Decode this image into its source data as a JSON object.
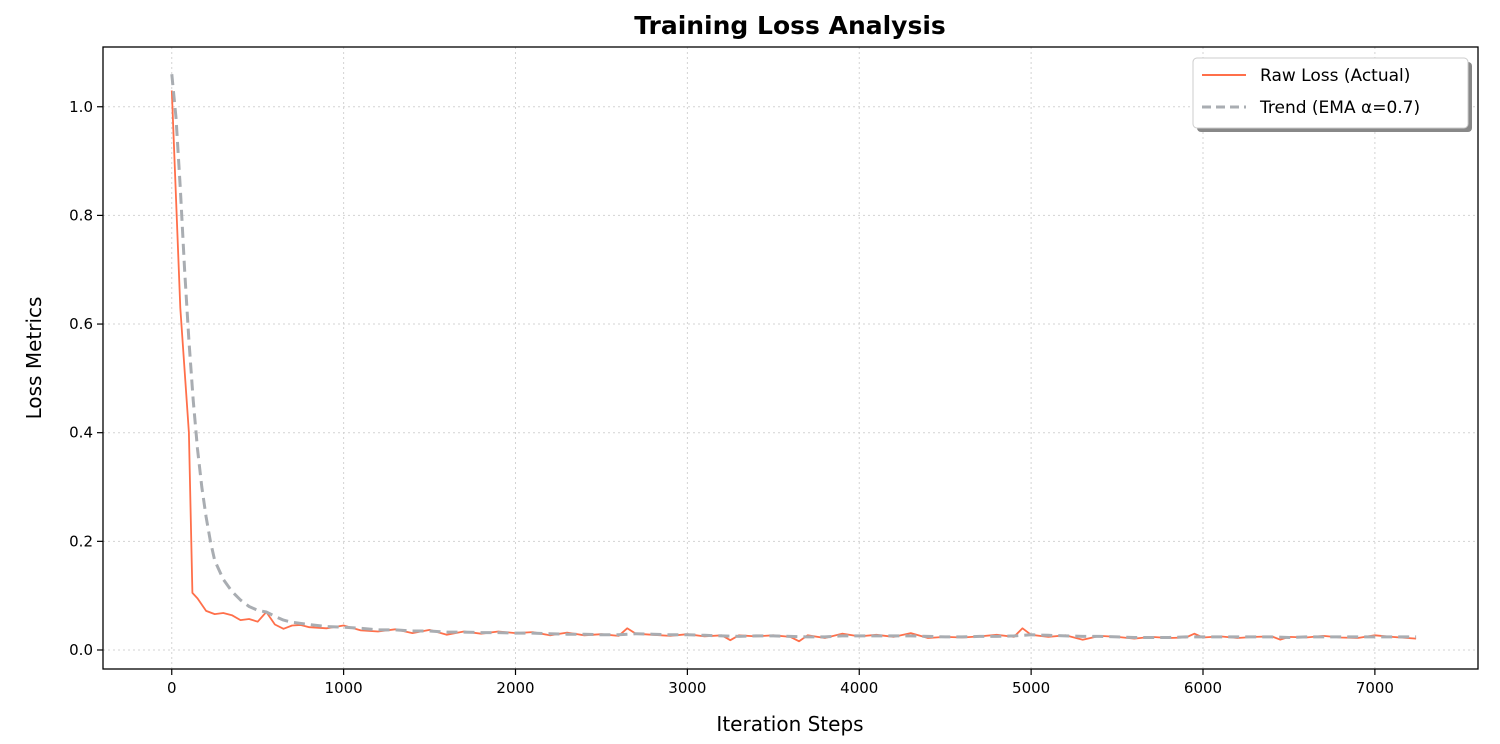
{
  "chart_data": {
    "type": "line",
    "title": "Training Loss Analysis",
    "xlabel": "Iteration Steps",
    "ylabel": "Loss Metrics",
    "xlim": [
      -400,
      7600
    ],
    "ylim": [
      -0.035,
      1.11
    ],
    "xticks": [
      0,
      1000,
      2000,
      3000,
      4000,
      5000,
      6000,
      7000
    ],
    "yticks": [
      0.0,
      0.2,
      0.4,
      0.6,
      0.8,
      1.0
    ],
    "xtick_labels": [
      "0",
      "1000",
      "2000",
      "3000",
      "4000",
      "5000",
      "6000",
      "7000"
    ],
    "ytick_labels": [
      "0.0",
      "0.2",
      "0.4",
      "0.6",
      "0.8",
      "1.0"
    ],
    "grid": true,
    "legend_position": "top-right",
    "series": [
      {
        "name": "Raw Loss (Actual)",
        "color": "#ff6f4a",
        "style": "solid",
        "x": [
          0,
          50,
          100,
          120,
          150,
          200,
          250,
          300,
          350,
          400,
          450,
          500,
          550,
          600,
          650,
          700,
          750,
          800,
          900,
          1000,
          1100,
          1200,
          1300,
          1400,
          1500,
          1600,
          1700,
          1800,
          1900,
          2000,
          2100,
          2200,
          2300,
          2400,
          2500,
          2600,
          2650,
          2700,
          2800,
          2900,
          3000,
          3100,
          3200,
          3250,
          3300,
          3400,
          3500,
          3600,
          3650,
          3700,
          3800,
          3900,
          4000,
          4100,
          4200,
          4300,
          4400,
          4500,
          4600,
          4700,
          4800,
          4900,
          4950,
          5000,
          5100,
          5200,
          5300,
          5400,
          5500,
          5600,
          5700,
          5800,
          5900,
          5950,
          6000,
          6100,
          6200,
          6300,
          6400,
          6450,
          6500,
          6600,
          6700,
          6800,
          6900,
          7000,
          7100,
          7240
        ],
        "y": [
          1.03,
          0.63,
          0.4,
          0.105,
          0.095,
          0.072,
          0.066,
          0.068,
          0.064,
          0.055,
          0.057,
          0.052,
          0.07,
          0.047,
          0.039,
          0.045,
          0.046,
          0.042,
          0.04,
          0.045,
          0.036,
          0.034,
          0.038,
          0.031,
          0.037,
          0.028,
          0.034,
          0.03,
          0.034,
          0.031,
          0.033,
          0.027,
          0.032,
          0.027,
          0.029,
          0.026,
          0.04,
          0.03,
          0.028,
          0.026,
          0.029,
          0.025,
          0.027,
          0.018,
          0.027,
          0.025,
          0.027,
          0.024,
          0.016,
          0.027,
          0.022,
          0.03,
          0.025,
          0.028,
          0.024,
          0.031,
          0.022,
          0.024,
          0.023,
          0.025,
          0.028,
          0.024,
          0.04,
          0.028,
          0.024,
          0.027,
          0.019,
          0.026,
          0.024,
          0.021,
          0.024,
          0.022,
          0.023,
          0.03,
          0.023,
          0.025,
          0.022,
          0.024,
          0.025,
          0.019,
          0.024,
          0.023,
          0.026,
          0.023,
          0.022,
          0.027,
          0.024,
          0.021
        ]
      },
      {
        "name": "Trend (EMA α=0.7)",
        "color": "#a9adb2",
        "style": "dashed",
        "x": [
          0,
          25,
          50,
          75,
          100,
          125,
          150,
          175,
          200,
          225,
          250,
          300,
          350,
          400,
          450,
          500,
          550,
          600,
          650,
          700,
          800,
          900,
          1000,
          1100,
          1200,
          1300,
          1400,
          1500,
          1600,
          1700,
          1800,
          1900,
          2000,
          2100,
          2200,
          2300,
          2400,
          2500,
          2600,
          2700,
          2800,
          2900,
          3000,
          3100,
          3200,
          3300,
          3400,
          3500,
          3600,
          3700,
          3800,
          3900,
          4000,
          4100,
          4200,
          4300,
          4400,
          4500,
          4600,
          4700,
          4800,
          4900,
          5000,
          5100,
          5200,
          5300,
          5400,
          5500,
          5600,
          5700,
          5800,
          5900,
          6000,
          6100,
          6200,
          6300,
          6400,
          6500,
          6600,
          6700,
          6800,
          6900,
          7000,
          7100,
          7240
        ],
        "y": [
          1.06,
          0.98,
          0.85,
          0.7,
          0.57,
          0.46,
          0.37,
          0.3,
          0.245,
          0.2,
          0.165,
          0.13,
          0.108,
          0.092,
          0.08,
          0.073,
          0.07,
          0.062,
          0.055,
          0.051,
          0.047,
          0.043,
          0.042,
          0.04,
          0.037,
          0.037,
          0.035,
          0.035,
          0.033,
          0.033,
          0.032,
          0.032,
          0.031,
          0.031,
          0.03,
          0.029,
          0.029,
          0.028,
          0.028,
          0.03,
          0.029,
          0.028,
          0.028,
          0.027,
          0.026,
          0.025,
          0.026,
          0.026,
          0.025,
          0.024,
          0.024,
          0.026,
          0.026,
          0.026,
          0.026,
          0.026,
          0.025,
          0.024,
          0.024,
          0.025,
          0.025,
          0.026,
          0.028,
          0.027,
          0.026,
          0.025,
          0.025,
          0.024,
          0.023,
          0.023,
          0.023,
          0.024,
          0.024,
          0.024,
          0.024,
          0.024,
          0.024,
          0.023,
          0.024,
          0.024,
          0.024,
          0.024,
          0.024,
          0.024,
          0.024
        ]
      }
    ]
  }
}
